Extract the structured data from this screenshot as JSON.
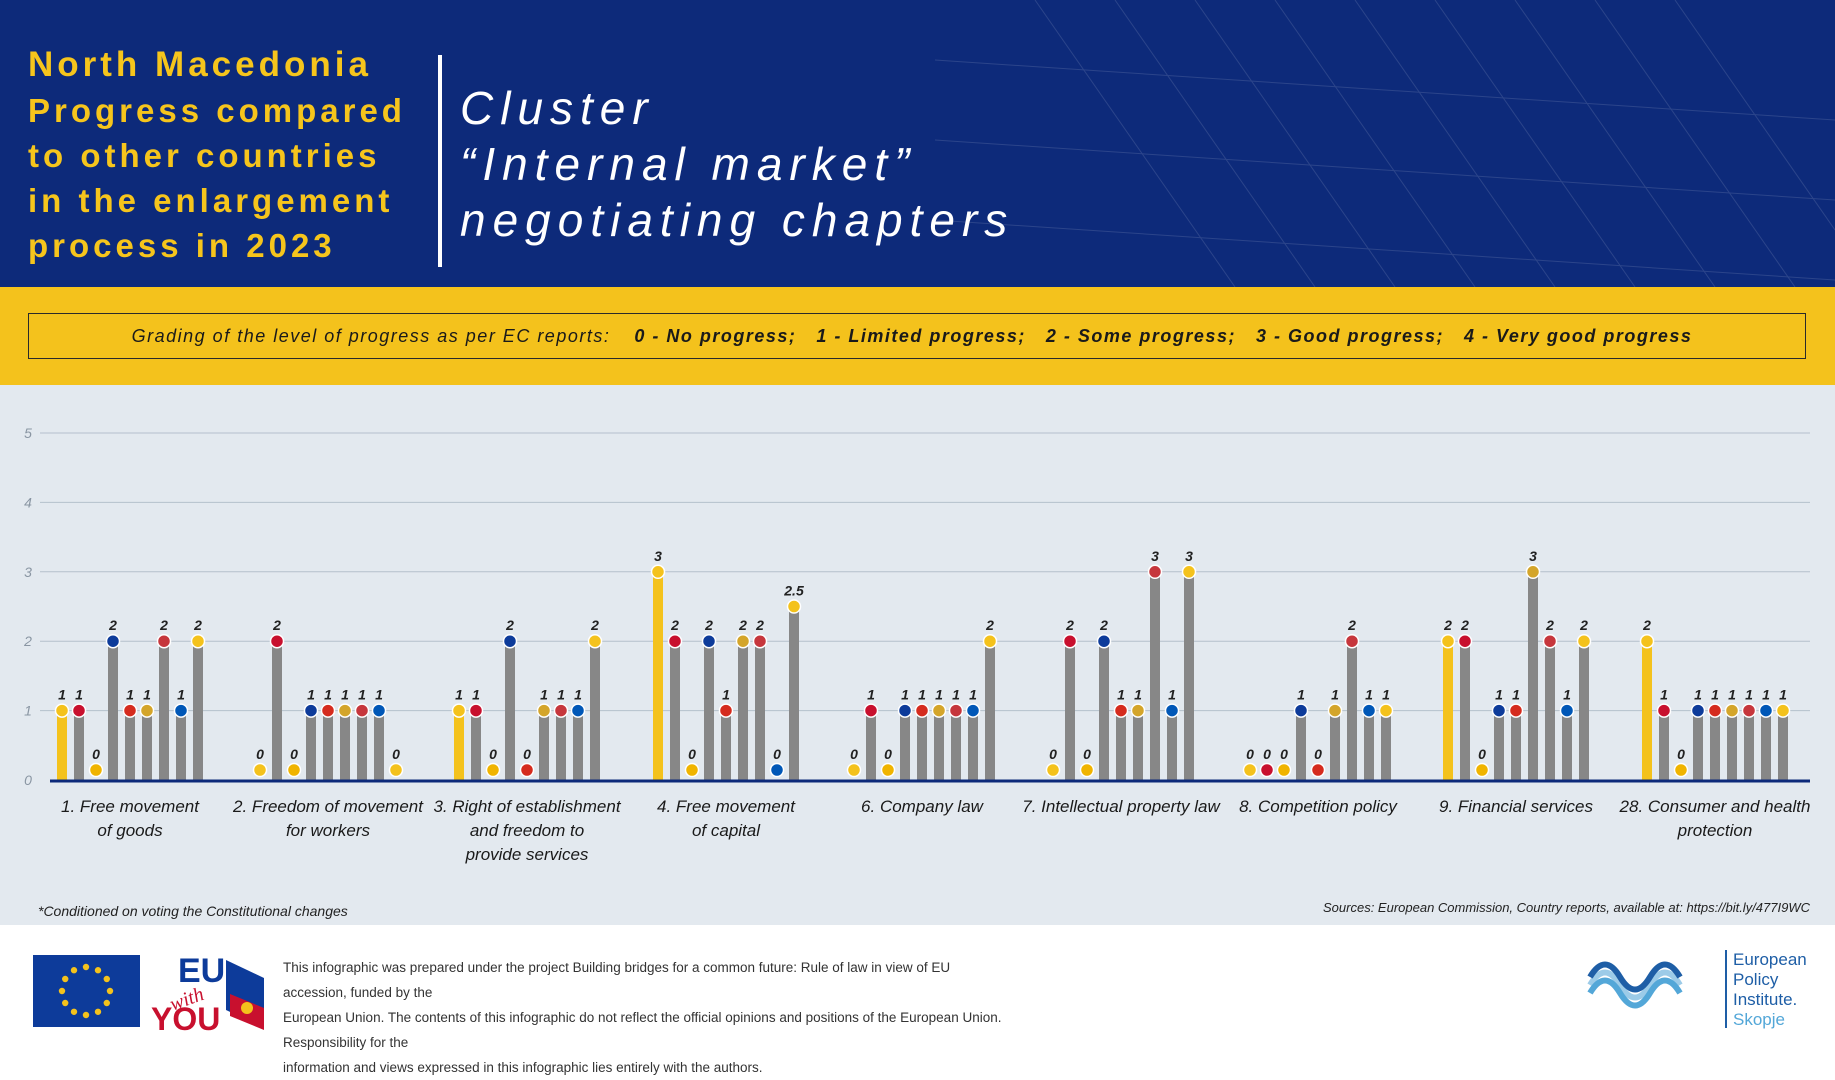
{
  "header": {
    "left_title_line1": "North Macedonia",
    "left_title_line2": "Progress compared",
    "left_title_line3": "to other countries",
    "left_title_line4": "in the enlargement",
    "left_title_line5": "process in 2023",
    "cluster_line1": "Cluster",
    "cluster_line2": "“Internal market”",
    "cluster_line3": "negotiating chapters"
  },
  "grading": {
    "intro": "Grading of the level of progress as per EC reports:",
    "levels": [
      "0 - No progress;",
      "1 - Limited progress;",
      "2 - Some progress;",
      "3 - Good progress;",
      "4 - Very good progress"
    ]
  },
  "colors": {
    "header_bg": "#0d2a7a",
    "accent_yellow": "#f4c21c",
    "chart_bg": "#e3e9ef",
    "bar_grey": "#878787",
    "bar_highlight": "#f4c21c",
    "axis": "#0d2a7a"
  },
  "country_marker_colors": [
    "#f4c21c",
    "#c8102e",
    "#f0b400",
    "#0d3b9a",
    "#d52b1e",
    "#d4a52a",
    "#c6363c",
    "#0057b7"
  ],
  "chart_data": {
    "type": "bar",
    "ylim": [
      0,
      5
    ],
    "yticks": [
      "0",
      "1",
      "2",
      "3",
      "4",
      "5"
    ],
    "categories": [
      {
        "label_lines": [
          "1. Free movement",
          "of goods"
        ],
        "values": [
          1,
          1,
          0,
          2,
          1,
          1,
          2,
          1,
          2
        ],
        "labels": [
          "1",
          "1",
          "0",
          "2",
          "1",
          "1",
          "2",
          "1",
          "2"
        ]
      },
      {
        "label_lines": [
          "2. Freedom of movement",
          "for workers"
        ],
        "values": [
          0,
          2,
          0,
          1,
          1,
          1,
          1,
          1,
          0
        ],
        "labels": [
          "0",
          "2",
          "0",
          "1",
          "1",
          "1",
          "1",
          "1",
          "0"
        ]
      },
      {
        "label_lines": [
          "3. Right of establishment",
          "and freedom to",
          "provide services"
        ],
        "values": [
          1,
          1,
          0,
          2,
          0,
          1,
          1,
          1,
          2
        ],
        "labels": [
          "1",
          "1",
          "0",
          "2",
          "0",
          "1",
          "1",
          "1",
          "2"
        ]
      },
      {
        "label_lines": [
          "4. Free movement",
          "of capital"
        ],
        "values": [
          3,
          2,
          0,
          2,
          1,
          2,
          2,
          0,
          2.5
        ],
        "labels": [
          "3",
          "2",
          "0",
          "2",
          "1",
          "2",
          "2",
          "0",
          "2.5"
        ]
      },
      {
        "label_lines": [
          "6. Company law"
        ],
        "values": [
          0,
          1,
          0,
          1,
          1,
          1,
          1,
          1,
          2
        ],
        "labels": [
          "0",
          "1",
          "0",
          "1",
          "1",
          "1",
          "1",
          "1",
          "2"
        ]
      },
      {
        "label_lines": [
          "7. Intellectual property law"
        ],
        "values": [
          0,
          2,
          0,
          2,
          1,
          1,
          3,
          1,
          3
        ],
        "labels": [
          "0",
          "2",
          "0",
          "2",
          "1",
          "1",
          "3",
          "1",
          "3"
        ]
      },
      {
        "label_lines": [
          "8. Competition policy"
        ],
        "values": [
          0,
          0,
          0,
          1,
          0,
          1,
          2,
          1,
          1
        ],
        "labels": [
          "0",
          "0",
          "0",
          "1",
          "0",
          "1",
          "2",
          "1",
          "1"
        ]
      },
      {
        "label_lines": [
          "9. Financial services"
        ],
        "values": [
          2,
          2,
          0,
          1,
          1,
          3,
          2,
          1,
          2
        ],
        "labels": [
          "2",
          "2",
          "0",
          "1",
          "1",
          "3",
          "2",
          "1",
          "2"
        ]
      },
      {
        "label_lines": [
          "28. Consumer and health",
          "protection"
        ],
        "values": [
          2,
          1,
          0,
          1,
          1,
          1,
          1,
          1,
          1
        ],
        "labels": [
          "2",
          "1",
          "0",
          "1",
          "1",
          "1",
          "1",
          "1",
          "1"
        ]
      }
    ],
    "highlight_first_bar": true,
    "grid": true
  },
  "footnote": "*Conditioned on voting the Constitutional changes",
  "sources": "Sources: European Commission, Country reports, available at: https://bit.ly/477I9WC",
  "footer": {
    "disclaimer_line1": "This infographic was prepared under the project Building bridges for a common future: Rule of law in view of EU accession, funded by the",
    "disclaimer_line2": "European Union. The contents of this infographic do not reflect the official opinions and positions of the European Union. Responsibility for the",
    "disclaimer_line3": "information and views expressed in this infographic lies entirely with the authors.",
    "logo_eu": "EU",
    "logo_with": "with",
    "logo_you": "YOU",
    "epi_line1": "European",
    "epi_line2": "Policy",
    "epi_line3": "Institute.",
    "epi_line4": "Skopje"
  }
}
